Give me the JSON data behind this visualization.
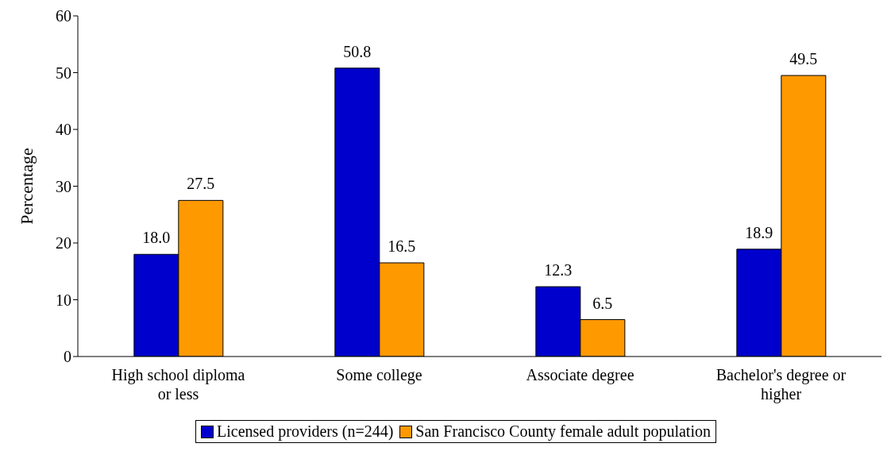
{
  "chart_data": {
    "type": "bar",
    "ylabel": "Percentage",
    "categories": [
      "High school diploma or less",
      "Some college",
      "Associate degree",
      "Bachelor's degree or higher"
    ],
    "series": [
      {
        "name": "Licensed providers (n=244)",
        "color": "#0000cc",
        "values": [
          18.0,
          50.8,
          12.3,
          18.9
        ],
        "value_labels": [
          "18.0",
          "50.8",
          "12.3",
          "18.9"
        ]
      },
      {
        "name": "San Francisco County female adult population",
        "color": "#ff9900",
        "values": [
          27.5,
          16.5,
          6.5,
          49.5
        ],
        "value_labels": [
          "27.5",
          "16.5",
          "6.5",
          "49.5"
        ]
      }
    ],
    "ylim": [
      0,
      60
    ],
    "yticks": [
      0,
      10,
      20,
      30,
      40,
      50,
      60
    ],
    "grid": false,
    "legend": "bottom"
  }
}
